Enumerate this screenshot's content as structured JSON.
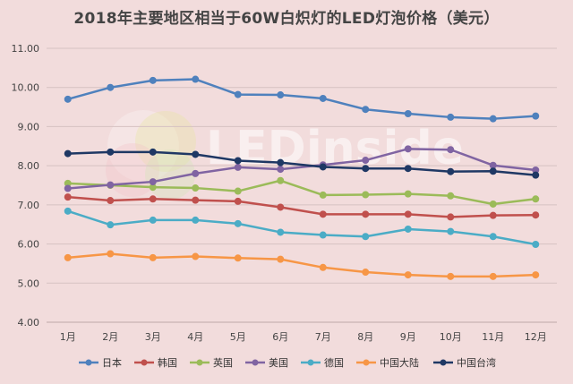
{
  "chart_data": {
    "type": "line",
    "title": "2018年主要地区相当于60W白炽灯的LED灯泡价格（美元）",
    "xlabel": "",
    "ylabel": "",
    "categories": [
      "1月",
      "2月",
      "3月",
      "4月",
      "5月",
      "6月",
      "7月",
      "8月",
      "9月",
      "10月",
      "11月",
      "12月"
    ],
    "ylim": [
      4.0,
      11.0
    ],
    "yticks": [
      "4.00",
      "5.00",
      "6.00",
      "7.00",
      "8.00",
      "9.00",
      "10.00",
      "11.00"
    ],
    "grid": true,
    "legend_position": "bottom",
    "watermark": "LEDinside",
    "series": [
      {
        "name": "日本",
        "color": "#4f81bd",
        "values": [
          9.7,
          10.0,
          10.18,
          10.21,
          9.82,
          9.81,
          9.72,
          9.44,
          9.33,
          9.24,
          9.2,
          9.27
        ]
      },
      {
        "name": "韩国",
        "color": "#c0504d",
        "values": [
          7.2,
          7.11,
          7.15,
          7.12,
          7.09,
          6.94,
          6.76,
          6.76,
          6.76,
          6.69,
          6.73,
          6.74
        ]
      },
      {
        "name": "英国",
        "color": "#9bbb59",
        "values": [
          7.55,
          7.5,
          7.45,
          7.43,
          7.35,
          7.62,
          7.25,
          7.26,
          7.28,
          7.23,
          7.02,
          7.15
        ]
      },
      {
        "name": "美国",
        "color": "#8064a2",
        "values": [
          7.42,
          7.51,
          7.59,
          7.8,
          7.96,
          7.91,
          8.02,
          8.14,
          8.43,
          8.41,
          8.01,
          7.89
        ]
      },
      {
        "name": "德国",
        "color": "#4bacc6",
        "values": [
          6.84,
          6.49,
          6.61,
          6.61,
          6.52,
          6.3,
          6.23,
          6.19,
          6.38,
          6.32,
          6.19,
          5.99
        ]
      },
      {
        "name": "中国大陆",
        "color": "#f79646",
        "values": [
          5.65,
          5.75,
          5.65,
          5.68,
          5.64,
          5.61,
          5.4,
          5.28,
          5.21,
          5.17,
          5.17,
          5.21
        ]
      },
      {
        "name": "中国台湾",
        "color": "#1f3864",
        "values": [
          8.31,
          8.35,
          8.35,
          8.29,
          8.13,
          8.08,
          7.97,
          7.93,
          7.93,
          7.85,
          7.86,
          7.76
        ]
      }
    ]
  }
}
